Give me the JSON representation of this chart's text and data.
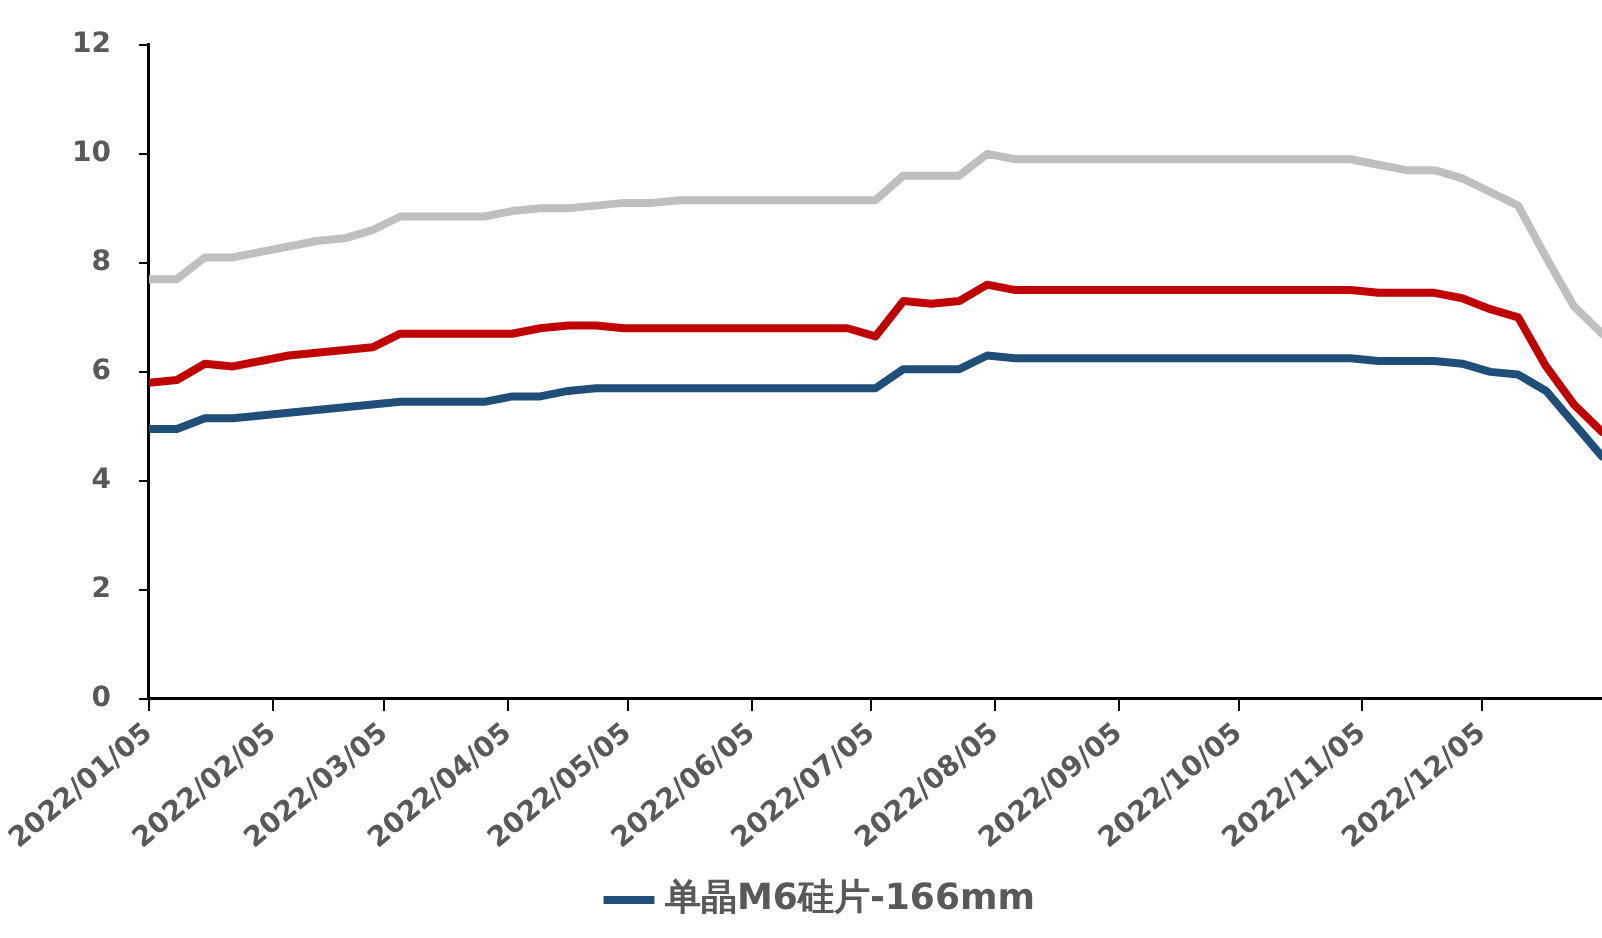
{
  "chart_data": {
    "type": "line",
    "x": [
      "2022-01-05",
      "2022-01-12",
      "2022-01-19",
      "2022-01-26",
      "2022-02-02",
      "2022-02-09",
      "2022-02-16",
      "2022-02-23",
      "2022-03-02",
      "2022-03-09",
      "2022-03-16",
      "2022-03-23",
      "2022-03-30",
      "2022-04-06",
      "2022-04-13",
      "2022-04-20",
      "2022-04-27",
      "2022-05-04",
      "2022-05-11",
      "2022-05-18",
      "2022-05-25",
      "2022-06-01",
      "2022-06-08",
      "2022-06-15",
      "2022-06-22",
      "2022-06-29",
      "2022-07-06",
      "2022-07-13",
      "2022-07-20",
      "2022-07-27",
      "2022-08-03",
      "2022-08-10",
      "2022-08-17",
      "2022-08-24",
      "2022-08-31",
      "2022-09-07",
      "2022-09-14",
      "2022-09-21",
      "2022-09-28",
      "2022-10-05",
      "2022-10-12",
      "2022-10-19",
      "2022-10-26",
      "2022-11-02",
      "2022-11-09",
      "2022-11-16",
      "2022-11-23",
      "2022-11-30",
      "2022-12-07",
      "2022-12-14",
      "2022-12-21",
      "2022-12-28",
      "2023-01-04"
    ],
    "series": [
      {
        "color": "#bfbfbf",
        "values": [
          7.7,
          7.7,
          8.1,
          8.1,
          8.2,
          8.3,
          8.4,
          8.45,
          8.6,
          8.85,
          8.85,
          8.85,
          8.85,
          8.95,
          9.0,
          9.0,
          9.05,
          9.1,
          9.1,
          9.15,
          9.15,
          9.15,
          9.15,
          9.15,
          9.15,
          9.15,
          9.15,
          9.6,
          9.6,
          9.6,
          10.0,
          9.9,
          9.9,
          9.9,
          9.9,
          9.9,
          9.9,
          9.9,
          9.9,
          9.9,
          9.9,
          9.9,
          9.9,
          9.9,
          9.8,
          9.7,
          9.7,
          9.55,
          9.3,
          9.05,
          8.1,
          7.2,
          6.7
        ]
      },
      {
        "color": "#c00000",
        "values": [
          5.8,
          5.85,
          6.15,
          6.1,
          6.2,
          6.3,
          6.35,
          6.4,
          6.45,
          6.7,
          6.7,
          6.7,
          6.7,
          6.7,
          6.8,
          6.85,
          6.85,
          6.8,
          6.8,
          6.8,
          6.8,
          6.8,
          6.8,
          6.8,
          6.8,
          6.8,
          6.65,
          7.3,
          7.25,
          7.3,
          7.6,
          7.5,
          7.5,
          7.5,
          7.5,
          7.5,
          7.5,
          7.5,
          7.5,
          7.5,
          7.5,
          7.5,
          7.5,
          7.5,
          7.45,
          7.45,
          7.45,
          7.35,
          7.15,
          7.0,
          6.1,
          5.4,
          4.9
        ]
      },
      {
        "name": "单晶M6硅片-166mm",
        "color": "#1f4e79",
        "values": [
          4.95,
          4.95,
          5.15,
          5.15,
          5.2,
          5.25,
          5.3,
          5.35,
          5.4,
          5.45,
          5.45,
          5.45,
          5.45,
          5.55,
          5.55,
          5.65,
          5.7,
          5.7,
          5.7,
          5.7,
          5.7,
          5.7,
          5.7,
          5.7,
          5.7,
          5.7,
          5.7,
          6.05,
          6.05,
          6.05,
          6.3,
          6.25,
          6.25,
          6.25,
          6.25,
          6.25,
          6.25,
          6.25,
          6.25,
          6.25,
          6.25,
          6.25,
          6.25,
          6.25,
          6.2,
          6.2,
          6.2,
          6.15,
          6.0,
          5.95,
          5.65,
          5.05,
          4.45
        ]
      }
    ],
    "xlim": [
      "2022-01-05",
      "2023-01-04"
    ],
    "xticks": [
      {
        "value": "2022-01-05",
        "label": "2022/01/05"
      },
      {
        "value": "2022-02-05",
        "label": "2022/02/05"
      },
      {
        "value": "2022-03-05",
        "label": "2022/03/05"
      },
      {
        "value": "2022-04-05",
        "label": "2022/04/05"
      },
      {
        "value": "2022-05-05",
        "label": "2022/05/05"
      },
      {
        "value": "2022-06-05",
        "label": "2022/06/05"
      },
      {
        "value": "2022-07-05",
        "label": "2022/07/05"
      },
      {
        "value": "2022-08-05",
        "label": "2022/08/05"
      },
      {
        "value": "2022-09-05",
        "label": "2022/09/05"
      },
      {
        "value": "2022-10-05",
        "label": "2022/10/05"
      },
      {
        "value": "2022-11-05",
        "label": "2022/11/05"
      },
      {
        "value": "2022-12-05",
        "label": "2022/12/05"
      }
    ],
    "ylim": [
      0,
      12
    ],
    "yticks": [
      0,
      2,
      4,
      6,
      8,
      10,
      12
    ],
    "grid": false,
    "legend": "bottom",
    "marker": "none",
    "line_style": "solid"
  }
}
